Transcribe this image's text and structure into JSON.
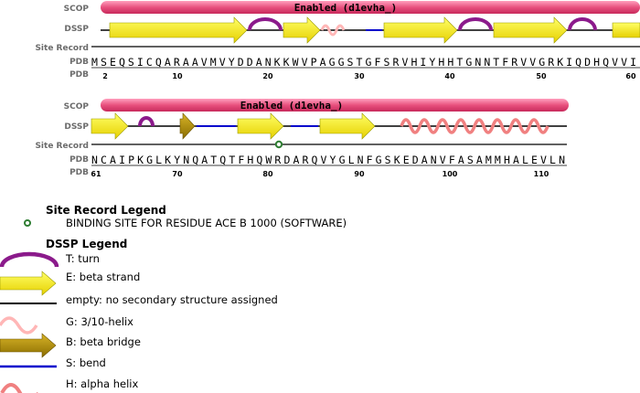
{
  "tracks": {
    "scop": "SCOP",
    "dssp": "DSSP",
    "site_record": "Site Record",
    "pdb": "PDB"
  },
  "rows": [
    {
      "scop_label": "Enabled (d1evha_)",
      "sequence": "MSEQSICQARAAVMVYDDANKKWVPAGGSTGFSRVHIYHHTGNNTFRVVGRKIQDHQVVI",
      "ticks": [
        "2",
        "10",
        "20",
        "30",
        "40",
        "50",
        "60"
      ]
    },
    {
      "scop_label": "Enabled (d1evha_)",
      "sequence": "NCAIPKGLKYNQATQTFHQWRDARQVYGLNFGSKEDANVFASAMMHALEVLN",
      "ticks": [
        "61",
        "70",
        "80",
        "90",
        "100",
        "110"
      ]
    }
  ],
  "site_legend": {
    "title": "Site Record Legend",
    "items": [
      {
        "text": "BINDING SITE FOR RESIDUE ACE B 1000 (SOFTWARE)",
        "color": "#2e7d32"
      }
    ]
  },
  "dssp_legend": {
    "title": "DSSP Legend",
    "items": [
      {
        "type": "turn",
        "text": "T: turn",
        "color": "#8b1a8b"
      },
      {
        "type": "strand",
        "text": "E: beta strand",
        "color": "#ffff00"
      },
      {
        "type": "empty",
        "text": "empty: no secondary structure assigned",
        "color": "#000000"
      },
      {
        "type": "helix310",
        "text": "G: 3/10-helix",
        "color": "#ffb6b6"
      },
      {
        "type": "bridge",
        "text": "B: beta bridge",
        "color": "#b8960b"
      },
      {
        "type": "bend",
        "text": "S: bend",
        "color": "#0000cc"
      },
      {
        "type": "alpha",
        "text": "H: alpha helix",
        "color": "#f08080"
      }
    ]
  }
}
